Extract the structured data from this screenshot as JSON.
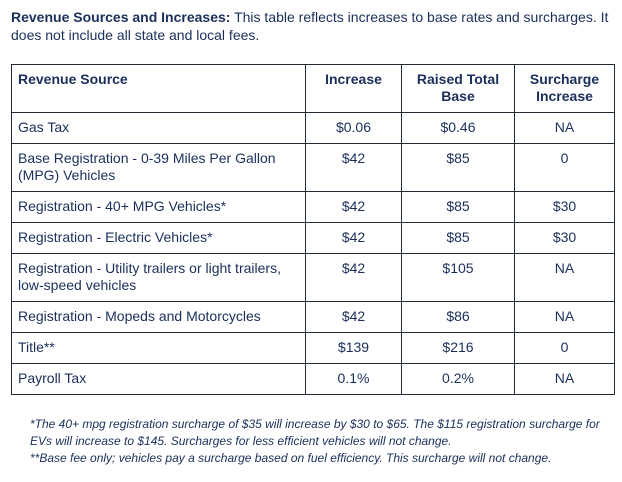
{
  "intro": {
    "heading": "Revenue Sources and Increases:",
    "text": "This table reflects increases to base rates and surcharges. It does not include all state and local fees."
  },
  "table": {
    "headers": [
      "Revenue Source",
      "Increase",
      "Raised Total Base",
      "Surcharge Increase"
    ],
    "rows": [
      {
        "source": "Gas Tax",
        "increase": "$0.06",
        "base": "$0.46",
        "surcharge": "NA"
      },
      {
        "source": "Base Registration - 0-39 Miles Per Gallon (MPG) Vehicles",
        "increase": "$42",
        "base": "$85",
        "surcharge": "0"
      },
      {
        "source": "Registration - 40+ MPG Vehicles*",
        "increase": "$42",
        "base": "$85",
        "surcharge": "$30"
      },
      {
        "source": "Registration - Electric Vehicles*",
        "increase": "$42",
        "base": "$85",
        "surcharge": "$30"
      },
      {
        "source": "Registration - Utility trailers or light trailers, low-speed vehicles",
        "increase": "$42",
        "base": "$105",
        "surcharge": "NA"
      },
      {
        "source": "Registration - Mopeds and Motorcycles",
        "increase": "$42",
        "base": "$86",
        "surcharge": "NA"
      },
      {
        "source": "Title**",
        "increase": "$139",
        "base": "$216",
        "surcharge": "0"
      },
      {
        "source": "Payroll Tax",
        "increase": "0.1%",
        "base": "0.2%",
        "surcharge": "NA"
      }
    ]
  },
  "notes": [
    "*The 40+ mpg registration surcharge of $35 will increase by $30 to $65. The $115 registration surcharge for EVs will increase to $145. Surcharges for less efficient vehicles will not change.",
    "**Base fee only; vehicles pay a surcharge based on fuel efficiency. This surcharge will not change."
  ]
}
